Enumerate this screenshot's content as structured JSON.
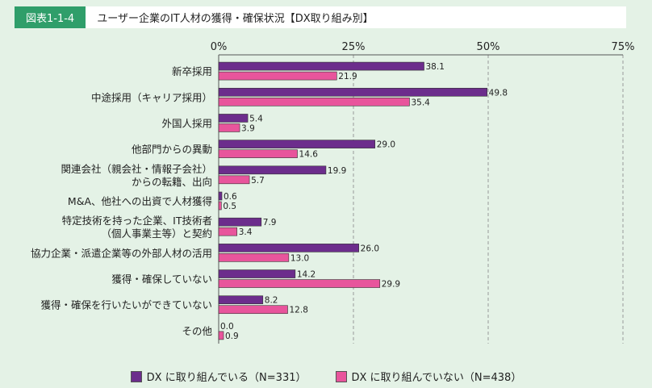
{
  "header": {
    "figure_label": "図表1-1-4",
    "title": "ユーザー企業のIT人材の獲得・確保状況【DX取り組み別】"
  },
  "colors": {
    "series_dx": "#6c2d8c",
    "series_non_dx": "#e8559c",
    "figure_label_bg": "#2f9e6a",
    "background": "#e4f2e6"
  },
  "chart_data": {
    "type": "bar",
    "orientation": "horizontal",
    "categories": [
      [
        "新卒採用"
      ],
      [
        "中途採用（キャリア採用）"
      ],
      [
        "外国人採用"
      ],
      [
        "他部門からの異動"
      ],
      [
        "関連会社（親会社・情報子会社）",
        "からの転籍、出向"
      ],
      [
        "M&A、他社への出資で人材獲得"
      ],
      [
        "特定技術を持った企業、IT技術者",
        "（個人事業主等）と契約"
      ],
      [
        "協力企業・派遣企業等の外部人材の活用"
      ],
      [
        "獲得・確保していない"
      ],
      [
        "獲得・確保を行いたいができていない"
      ],
      [
        "その他"
      ]
    ],
    "series": [
      {
        "name": "DX に取り組んでいる（N=331）",
        "values": [
          38.1,
          49.8,
          5.4,
          29.0,
          19.9,
          0.6,
          7.9,
          26.0,
          14.2,
          8.2,
          0.0
        ]
      },
      {
        "name": "DX に取り組んでいない（N=438）",
        "values": [
          21.9,
          35.4,
          3.9,
          14.6,
          5.7,
          0.5,
          3.4,
          13.0,
          29.9,
          12.8,
          0.9
        ]
      }
    ],
    "value_labels": [
      [
        "38.1",
        "49.8",
        "5.4",
        "29.0",
        "19.9",
        "0.6",
        "7.9",
        "26.0",
        "14.2",
        "8.2",
        "0.0"
      ],
      [
        "21.9",
        "35.4",
        "3.9",
        "14.6",
        "5.7",
        "0.5",
        "3.4",
        "13.0",
        "29.9",
        "12.8",
        "0.9"
      ]
    ],
    "xlim": [
      0,
      75
    ],
    "x_ticks": [
      "0%",
      "25%",
      "50%",
      "75%"
    ],
    "x_tick_values": [
      0,
      25,
      50,
      75
    ],
    "grid": true,
    "legend_position": "bottom"
  },
  "legend": {
    "dx": "DX に取り組んでいる（N=331）",
    "non_dx": "DX に取り組んでいない（N=438）"
  }
}
